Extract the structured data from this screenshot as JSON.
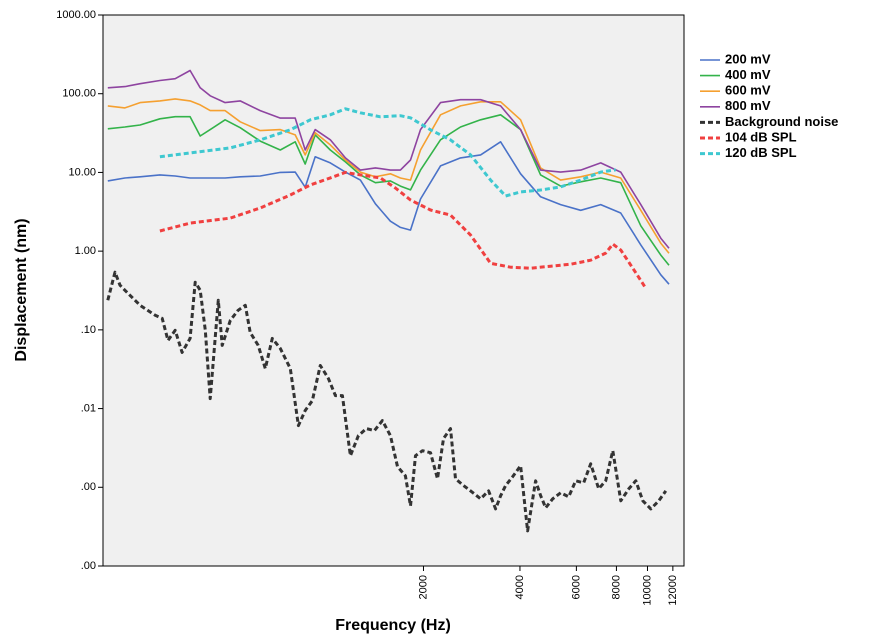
{
  "chart_data": {
    "type": "line",
    "x_label": "Frequency (Hz)",
    "y_label": "Displacement (nm)",
    "xscale": "log",
    "yscale": "log",
    "xlim": [
      200,
      13000
    ],
    "ylim": [
      0.0001,
      1000
    ],
    "xticks": [
      2000,
      4000,
      6000,
      8000,
      10000,
      12000
    ],
    "yticks": [
      {
        "value": 1000,
        "label": "1000.00"
      },
      {
        "value": 100,
        "label": "100.00"
      },
      {
        "value": 10,
        "label": "10.00"
      },
      {
        "value": 1,
        "label": "1.00"
      },
      {
        "value": 0.1,
        "label": ".10"
      },
      {
        "value": 0.01,
        "label": ".01"
      },
      {
        "value": 0.001,
        "label": ".00"
      },
      {
        "value": 0.0001,
        "label": ".00"
      }
    ],
    "legend": "right",
    "series": [
      {
        "name": "200 mV",
        "color": "#4a72c8",
        "dashed": false,
        "x": [
          207,
          234,
          261,
          301,
          336,
          374,
          402,
          432,
          481,
          536,
          619,
          715,
          796,
          855,
          919,
          1024,
          1141,
          1271,
          1416,
          1577,
          1695,
          1822,
          1958,
          2260,
          2610,
          3014,
          3480,
          4019,
          4640,
          5357,
          6187,
          7145,
          8251,
          9529,
          11003,
          11668
        ],
        "values": [
          7.8,
          8.5,
          8.8,
          9.3,
          9.0,
          8.5,
          8.5,
          8.5,
          8.5,
          8.8,
          9.0,
          10,
          10.1,
          6.5,
          15.8,
          13.2,
          10.1,
          8.0,
          4.0,
          2.4,
          2.0,
          1.85,
          4.6,
          12.1,
          15.3,
          16.7,
          24.5,
          9.6,
          4.9,
          3.9,
          3.3,
          3.9,
          3.05,
          1.2,
          0.5,
          0.38
        ]
      },
      {
        "name": "400 mV",
        "color": "#33b34a",
        "dashed": false,
        "x": [
          207,
          234,
          261,
          301,
          336,
          374,
          402,
          432,
          481,
          536,
          619,
          715,
          796,
          855,
          919,
          1024,
          1141,
          1271,
          1416,
          1577,
          1695,
          1822,
          1958,
          2260,
          2610,
          3014,
          3480,
          4019,
          4640,
          5357,
          6187,
          7145,
          8251,
          9529,
          11003,
          11668
        ],
        "values": [
          35.8,
          37.8,
          40,
          48,
          51,
          51,
          29,
          35,
          46.6,
          37,
          25,
          19.3,
          24.5,
          12.8,
          30,
          19.3,
          13.6,
          9.3,
          7.4,
          7.8,
          6.7,
          6.0,
          10.7,
          26,
          37.8,
          46.6,
          54,
          35,
          9.3,
          6.7,
          7.6,
          8.5,
          7.4,
          2.1,
          0.89,
          0.66
        ]
      },
      {
        "name": "600 mV",
        "color": "#f5a030",
        "dashed": false,
        "x": [
          207,
          234,
          261,
          301,
          336,
          374,
          402,
          432,
          481,
          536,
          619,
          715,
          796,
          855,
          919,
          1024,
          1141,
          1271,
          1416,
          1577,
          1695,
          1822,
          1958,
          2260,
          2610,
          3014,
          3480,
          4019,
          4640,
          5357,
          6187,
          7145,
          8251,
          9529,
          11003,
          11668
        ],
        "values": [
          70,
          66,
          77,
          81,
          86,
          81,
          72,
          61,
          61,
          44,
          34,
          35,
          30,
          16.7,
          32,
          22.4,
          14.4,
          10.1,
          8.8,
          9.6,
          8.5,
          8.0,
          19.3,
          54,
          70,
          79,
          79,
          46.6,
          11.4,
          8,
          8.8,
          10.1,
          8.5,
          3.3,
          1.26,
          0.94
        ]
      },
      {
        "name": "800 mV",
        "color": "#8e44a0",
        "dashed": false,
        "x": [
          207,
          234,
          261,
          301,
          336,
          374,
          402,
          432,
          481,
          536,
          619,
          715,
          796,
          855,
          919,
          1024,
          1141,
          1271,
          1416,
          1577,
          1695,
          1822,
          1958,
          2260,
          2610,
          3014,
          3480,
          4019,
          4640,
          5357,
          6187,
          7145,
          8251,
          9529,
          11003,
          11668
        ],
        "values": [
          119,
          123,
          134,
          147,
          155,
          197,
          119,
          94,
          77,
          81,
          61,
          49,
          49,
          19.3,
          35,
          26,
          15.3,
          10.7,
          11.4,
          10.7,
          10.7,
          14.4,
          35,
          77,
          84,
          84,
          70,
          35,
          10.7,
          10.1,
          10.7,
          13.2,
          10.1,
          3.9,
          1.46,
          1.09
        ]
      },
      {
        "name": "Background noise",
        "color": "#333333",
        "dashed": true,
        "x": [
          207,
          218,
          226,
          239,
          261,
          291,
          306,
          319,
          336,
          353,
          374,
          388,
          402,
          417,
          432,
          458,
          471,
          499,
          528,
          556,
          576,
          610,
          642,
          675,
          715,
          768,
          814,
          855,
          900,
          953,
          1010,
          1062,
          1117,
          1183,
          1253,
          1327,
          1406,
          1489,
          1577,
          1659,
          1757,
          1822,
          1888,
          1986,
          2104,
          2212,
          2310,
          2429,
          2518,
          2648,
          2805,
          3014,
          3193,
          3358,
          3481,
          3609,
          3794,
          4019,
          4227,
          4477,
          4642,
          4812,
          5060,
          5360,
          5677,
          5971,
          6325,
          6651,
          7045,
          7409,
          7792,
          8254,
          8743,
          9193,
          9667,
          10241,
          10848,
          11406
        ],
        "values": [
          0.238,
          0.54,
          0.369,
          0.292,
          0.205,
          0.153,
          0.14,
          0.0735,
          0.0986,
          0.0517,
          0.078,
          0.403,
          0.319,
          0.0986,
          0.0134,
          0.238,
          0.0635,
          0.132,
          0.177,
          0.205,
          0.0929,
          0.0635,
          0.0323,
          0.078,
          0.0581,
          0.0323,
          0.00607,
          0.00944,
          0.0126,
          0.0353,
          0.0241,
          0.0146,
          0.0146,
          0.00252,
          0.00453,
          0.00556,
          0.00525,
          0.00703,
          0.00453,
          0.00183,
          0.0014,
          0.00058,
          0.00252,
          0.00292,
          0.00275,
          0.00128,
          0.00415,
          0.00556,
          0.00128,
          0.00108,
          0.0009,
          0.000714,
          0.0009,
          0.000532,
          0.00078,
          0.00105,
          0.00136,
          0.00188,
          0.000279,
          0.00121,
          0.00078,
          0.000548,
          0.000714,
          0.000851,
          0.000757,
          0.00121,
          0.00114,
          0.00199,
          0.000957,
          0.00121,
          0.00292,
          0.000673,
          0.000957,
          0.00121,
          0.000673,
          0.000532,
          0.000673,
          0.0009
        ]
      },
      {
        "name": "104 dB SPL",
        "color": "#f04040",
        "dashed": true,
        "x": [
          301,
          374,
          499,
          619,
          768,
          887,
          1024,
          1141,
          1271,
          1467,
          1635,
          1822,
          2104,
          2429,
          2805,
          3240,
          3740,
          4320,
          4988,
          5762,
          6651,
          7409,
          7792,
          8254,
          8997,
          9878
        ],
        "values": [
          1.8,
          2.27,
          2.63,
          3.53,
          5.17,
          6.93,
          8.51,
          10,
          9.29,
          8.51,
          6.35,
          4.46,
          3.33,
          2.87,
          1.6,
          0.7,
          0.625,
          0.607,
          0.644,
          0.683,
          0.768,
          0.943,
          1.23,
          1.03,
          0.607,
          0.338
        ]
      },
      {
        "name": "120 dB SPL",
        "color": "#3ec8d0",
        "dashed": true,
        "x": [
          301,
          374,
          499,
          619,
          768,
          887,
          1024,
          1141,
          1271,
          1467,
          1695,
          1822,
          2104,
          2429,
          2805,
          3240,
          3609,
          4019,
          4642,
          5357,
          6187,
          7145,
          7962
        ],
        "values": [
          15.8,
          17.7,
          20.5,
          25.9,
          34.8,
          46.6,
          54,
          64.4,
          57.3,
          50.9,
          52.5,
          49.5,
          34.8,
          25.9,
          16.7,
          8.0,
          5.02,
          5.65,
          5.98,
          6.54,
          8.0,
          10.1,
          10.8
        ]
      }
    ]
  }
}
